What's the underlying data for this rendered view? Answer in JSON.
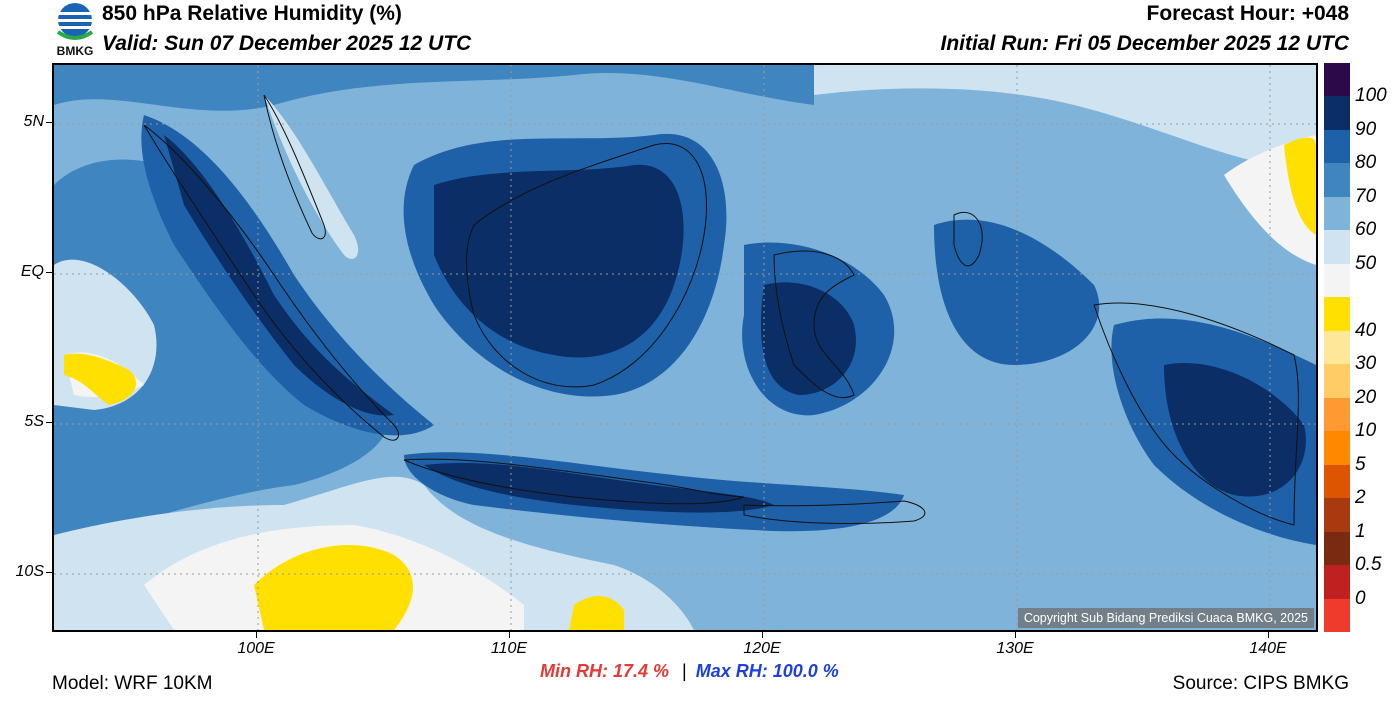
{
  "header": {
    "title": "850 hPa Relative Humidity (%)",
    "valid": "Valid: Sun 07 December 2025 12 UTC",
    "forecast_hour": "Forecast Hour: +048",
    "initial_run": "Initial Run: Fri 05 December 2025 12 UTC"
  },
  "logo": {
    "text": "BMKG"
  },
  "map": {
    "lat_labels": [
      "5N",
      "EQ",
      "5S",
      "10S"
    ],
    "lon_labels": [
      "100E",
      "110E",
      "120E",
      "130E",
      "140E"
    ],
    "copyright": "Copyright Sub Bidang Prediksi Cuaca BMKG, 2025"
  },
  "colorbar": {
    "labels": [
      "100",
      "90",
      "80",
      "70",
      "60",
      "50",
      "40",
      "30",
      "20",
      "10",
      "5",
      "2",
      "1",
      "0.5",
      "0"
    ],
    "colors": [
      "#2c0a4a",
      "#0b2e66",
      "#1f61a8",
      "#3f85c0",
      "#7fb3d9",
      "#cfe3f1",
      "#f4f4f4",
      "#ffe000",
      "#ffe799",
      "#ffcc66",
      "#ff9a33",
      "#ff8800",
      "#dd5500",
      "#a83a10",
      "#7a2a10",
      "#c02020",
      "#ee3b2b"
    ]
  },
  "footer": {
    "model": "Model: WRF 10KM",
    "min_rh": "Min RH:  17.4 %",
    "separator": "|",
    "max_rh": "Max RH: 100.0 %",
    "source": "Source: CIPS BMKG"
  }
}
